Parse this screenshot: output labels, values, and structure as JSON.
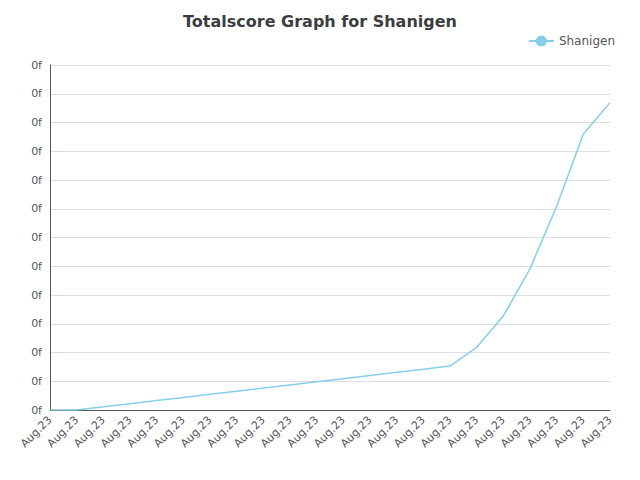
{
  "chart_data": {
    "type": "line",
    "title": "Totalscore Graph for Shanigen",
    "x": [
      0,
      1,
      2,
      3,
      4,
      5,
      6,
      7,
      8,
      9,
      10,
      11,
      12,
      13,
      14,
      15,
      16,
      17,
      18,
      19,
      20,
      21
    ],
    "series": [
      {
        "name": "Shanigen",
        "color": "#87CEEB",
        "values": [
          0,
          0,
          1,
          2,
          3,
          4,
          5,
          6,
          7,
          8,
          9,
          10,
          11,
          12,
          13,
          14,
          20,
          30,
          45,
          65,
          88,
          98
        ]
      }
    ],
    "xlim": [
      0,
      21
    ],
    "xticks": [
      {
        "value": 0,
        "label": "Aug.23"
      },
      {
        "value": 1,
        "label": "Aug.23"
      },
      {
        "value": 2,
        "label": "Aug.23"
      },
      {
        "value": 3,
        "label": "Aug.23"
      },
      {
        "value": 4,
        "label": "Aug.23"
      },
      {
        "value": 5,
        "label": "Aug.23"
      },
      {
        "value": 6,
        "label": "Aug.23"
      },
      {
        "value": 7,
        "label": "Aug.23"
      },
      {
        "value": 8,
        "label": "Aug.23"
      },
      {
        "value": 9,
        "label": "Aug.23"
      },
      {
        "value": 10,
        "label": "Aug.23"
      },
      {
        "value": 11,
        "label": "Aug.23"
      },
      {
        "value": 12,
        "label": "Aug.23"
      },
      {
        "value": 13,
        "label": "Aug.23"
      },
      {
        "value": 14,
        "label": "Aug.23"
      },
      {
        "value": 15,
        "label": "Aug.23"
      },
      {
        "value": 16,
        "label": "Aug.23"
      },
      {
        "value": 17,
        "label": "Aug.23"
      },
      {
        "value": 18,
        "label": "Aug.23"
      },
      {
        "value": 19,
        "label": "Aug.23"
      },
      {
        "value": 20,
        "label": "Aug.23"
      },
      {
        "value": 21,
        "label": "Aug.23"
      }
    ],
    "ylim": [
      0,
      110
    ],
    "yticks": [
      {
        "value": 0,
        "label": "0f"
      },
      {
        "value": 9.166666666666666,
        "label": "0f"
      },
      {
        "value": 18.333333333333332,
        "label": "0f"
      },
      {
        "value": 27.5,
        "label": "0f"
      },
      {
        "value": 36.666666666666664,
        "label": "0f"
      },
      {
        "value": 45.83333333333333,
        "label": "0f"
      },
      {
        "value": 55.0,
        "label": "0f"
      },
      {
        "value": 64.16666666666666,
        "label": "0f"
      },
      {
        "value": 73.33333333333333,
        "label": "0f"
      },
      {
        "value": 82.5,
        "label": "0f"
      },
      {
        "value": 91.66666666666666,
        "label": "0f"
      },
      {
        "value": 100.83333333333333,
        "label": "0f"
      },
      {
        "value": 110,
        "label": "0f"
      }
    ],
    "grid": true,
    "legend": "upper right"
  }
}
